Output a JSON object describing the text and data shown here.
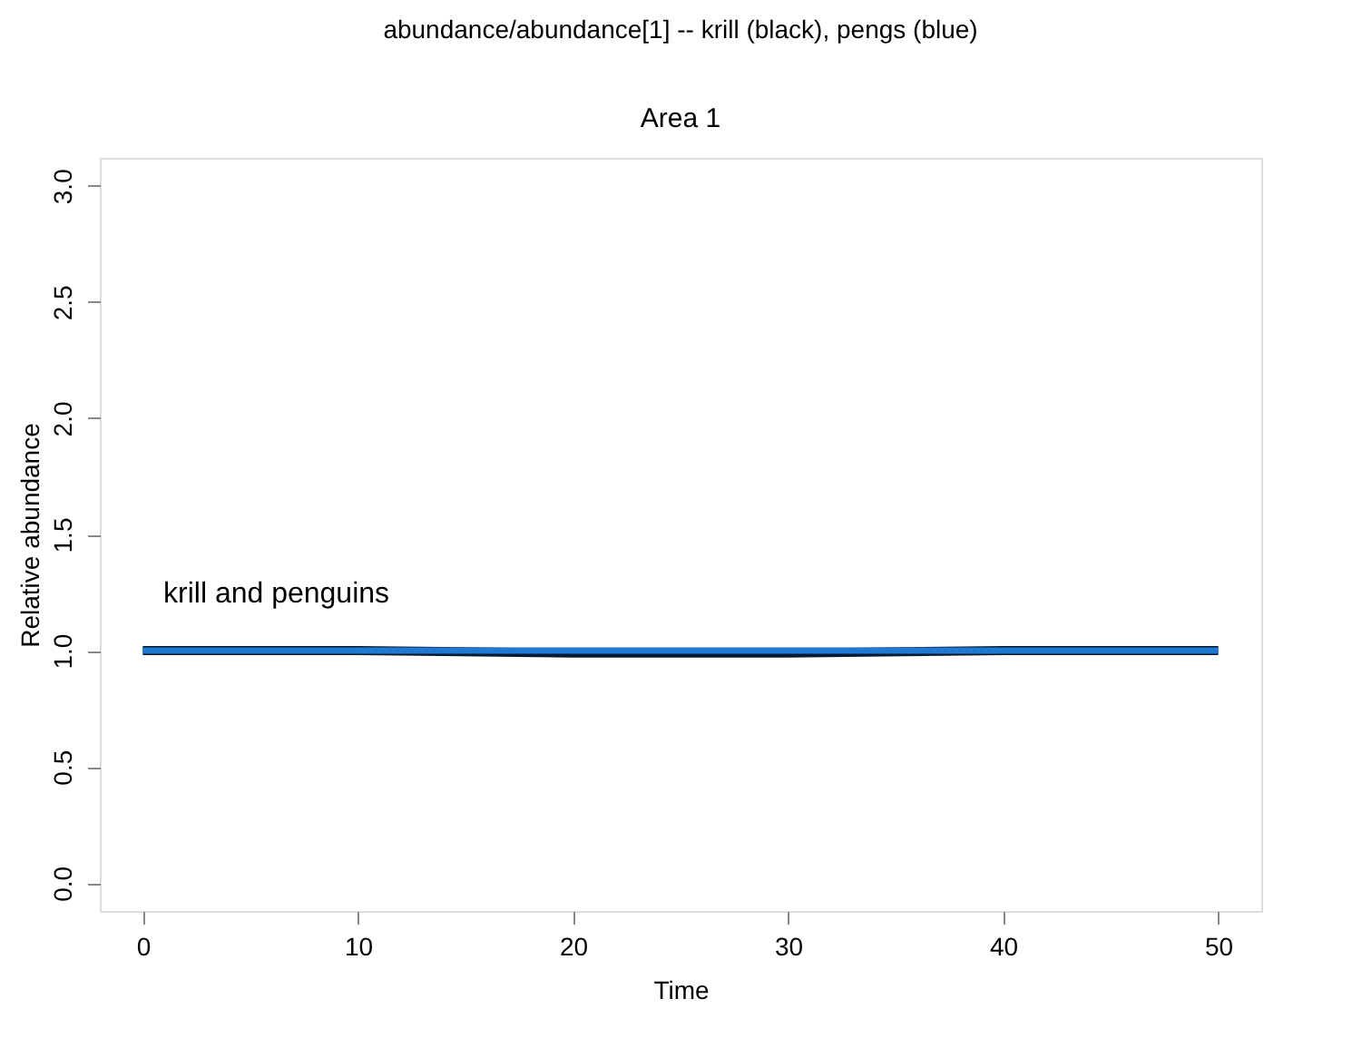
{
  "chart_data": {
    "type": "line",
    "title": "abundance/abundance[1] -- krill (black),  pengs (blue)",
    "subtitle": "Area 1",
    "xlabel": "Time",
    "ylabel": "Relative abundance",
    "x": [
      0,
      10,
      20,
      30,
      40,
      50
    ],
    "series": [
      {
        "color": "#0a1a2e",
        "values": [
          1.0,
          1.0,
          0.99,
          0.99,
          1.0,
          1.0
        ]
      },
      {
        "color": "#1f78d1",
        "values": [
          1.0,
          1.0,
          1.0,
          1.0,
          1.0,
          1.0
        ]
      }
    ],
    "annotations": [
      "krill and penguins"
    ],
    "xlim": [
      -2,
      52
    ],
    "ylim": [
      -0.12,
      3.12
    ],
    "xticks": [
      0,
      10,
      20,
      30,
      40,
      50
    ],
    "yticks": [
      {
        "value": 0,
        "label": "0.0"
      },
      0.5,
      {
        "value": 1,
        "label": "1.0"
      },
      1.5,
      {
        "value": 2,
        "label": "2.0"
      },
      2.5,
      {
        "value": 3,
        "label": "3.0"
      }
    ],
    "grid": false,
    "marker": "none",
    "line_style": "solid"
  }
}
